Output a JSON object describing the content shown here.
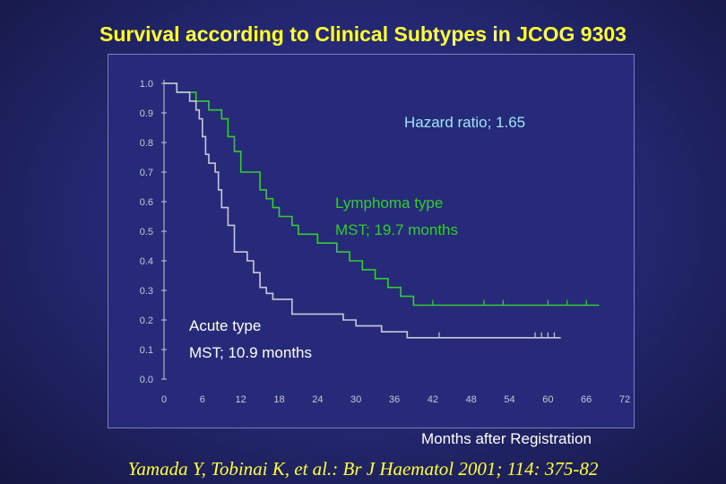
{
  "slide": {
    "title": "Survival according to Clinical Subtypes in JCOG 9303",
    "citation": "Yamada Y, Tobinai K, et al.: Br J Haematol 2001; 114: 375-82"
  },
  "colors": {
    "title": "#ffff33",
    "hazard_text": "#9fe4ff",
    "lymphoma": "#33cc33",
    "acute": "#c8c8dc",
    "axis": "#c8c8dc"
  },
  "chart_data": {
    "type": "line",
    "xlabel": "Months after Registration",
    "ylabel": "",
    "xlim": [
      0,
      72
    ],
    "ylim": [
      0,
      1
    ],
    "x_ticks": [
      "0",
      "6",
      "12",
      "18",
      "24",
      "30",
      "36",
      "42",
      "48",
      "54",
      "60",
      "66",
      "72"
    ],
    "y_ticks": [
      "0.0",
      "0.1",
      "0.2",
      "0.3",
      "0.4",
      "0.5",
      "0.6",
      "0.7",
      "0.8",
      "0.9",
      "1.0"
    ],
    "annotations": {
      "hazard_ratio": "Hazard ratio; 1.65",
      "lymphoma_name": "Lymphoma type",
      "lymphoma_mst": "MST; 19.7 months",
      "acute_name": "Acute type",
      "acute_mst": "MST; 10.9 months"
    },
    "series": [
      {
        "key": "lymphoma",
        "points": [
          [
            0,
            1.0
          ],
          [
            2,
            1.0
          ],
          [
            2,
            0.97
          ],
          [
            5,
            0.97
          ],
          [
            5,
            0.94
          ],
          [
            7,
            0.94
          ],
          [
            7,
            0.91
          ],
          [
            9,
            0.91
          ],
          [
            9,
            0.88
          ],
          [
            10,
            0.88
          ],
          [
            10,
            0.82
          ],
          [
            11,
            0.82
          ],
          [
            11,
            0.77
          ],
          [
            12,
            0.77
          ],
          [
            12,
            0.7
          ],
          [
            15,
            0.7
          ],
          [
            15,
            0.64
          ],
          [
            16,
            0.64
          ],
          [
            16,
            0.61
          ],
          [
            17,
            0.61
          ],
          [
            17,
            0.58
          ],
          [
            18,
            0.58
          ],
          [
            18,
            0.55
          ],
          [
            20,
            0.55
          ],
          [
            20,
            0.52
          ],
          [
            21,
            0.52
          ],
          [
            21,
            0.49
          ],
          [
            24,
            0.49
          ],
          [
            24,
            0.46
          ],
          [
            27,
            0.46
          ],
          [
            27,
            0.43
          ],
          [
            29,
            0.43
          ],
          [
            29,
            0.4
          ],
          [
            31,
            0.4
          ],
          [
            31,
            0.37
          ],
          [
            33,
            0.37
          ],
          [
            33,
            0.34
          ],
          [
            35,
            0.34
          ],
          [
            35,
            0.31
          ],
          [
            37,
            0.31
          ],
          [
            37,
            0.28
          ],
          [
            39,
            0.28
          ],
          [
            39,
            0.25
          ],
          [
            68,
            0.25
          ]
        ],
        "censor_x": [
          42,
          50,
          53,
          60,
          63,
          66
        ]
      },
      {
        "key": "acute",
        "points": [
          [
            0,
            1.0
          ],
          [
            2,
            1.0
          ],
          [
            2,
            0.97
          ],
          [
            4,
            0.97
          ],
          [
            4,
            0.94
          ],
          [
            5,
            0.94
          ],
          [
            5,
            0.91
          ],
          [
            5.5,
            0.91
          ],
          [
            5.5,
            0.88
          ],
          [
            6,
            0.88
          ],
          [
            6,
            0.82
          ],
          [
            6.5,
            0.82
          ],
          [
            6.5,
            0.76
          ],
          [
            7,
            0.76
          ],
          [
            7,
            0.73
          ],
          [
            8,
            0.73
          ],
          [
            8,
            0.7
          ],
          [
            8.5,
            0.7
          ],
          [
            8.5,
            0.64
          ],
          [
            9,
            0.64
          ],
          [
            9,
            0.58
          ],
          [
            10,
            0.58
          ],
          [
            10,
            0.52
          ],
          [
            11,
            0.52
          ],
          [
            11,
            0.43
          ],
          [
            13,
            0.43
          ],
          [
            13,
            0.4
          ],
          [
            14,
            0.4
          ],
          [
            14,
            0.36
          ],
          [
            15,
            0.36
          ],
          [
            15,
            0.31
          ],
          [
            16,
            0.31
          ],
          [
            16,
            0.29
          ],
          [
            17,
            0.29
          ],
          [
            17,
            0.27
          ],
          [
            20,
            0.27
          ],
          [
            20,
            0.22
          ],
          [
            28,
            0.22
          ],
          [
            28,
            0.2
          ],
          [
            30,
            0.2
          ],
          [
            30,
            0.18
          ],
          [
            34,
            0.18
          ],
          [
            34,
            0.16
          ],
          [
            38,
            0.16
          ],
          [
            38,
            0.14
          ],
          [
            62,
            0.14
          ]
        ],
        "censor_x": [
          43,
          58,
          59,
          60,
          61
        ]
      }
    ],
    "grid": false
  }
}
